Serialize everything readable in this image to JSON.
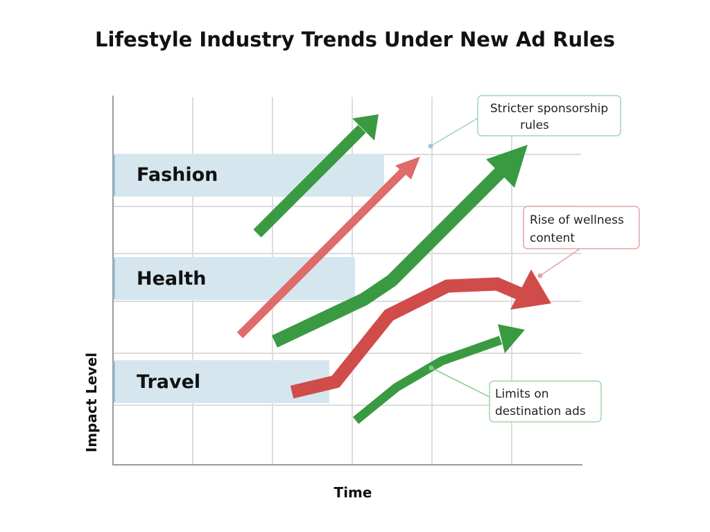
{
  "title": "Lifestyle Industry Trends Under New Ad Rules",
  "x_axis_label": "Time",
  "y_axis_label": "Impact Level",
  "categories": [
    {
      "label": "Fashion"
    },
    {
      "label": "Health"
    },
    {
      "label": "Travel"
    }
  ],
  "callouts": [
    {
      "lines": [
        "Stricter sponsorship",
        "rules"
      ]
    },
    {
      "lines": [
        "Rise of wellness",
        "content"
      ]
    },
    {
      "lines": [
        "Limits on",
        "destination ads"
      ]
    }
  ],
  "colors": {
    "green_arrow": "#3a9a41",
    "red_arrow": "#d04c4b",
    "pale_red_arrow": "#df6b6a",
    "band_fill": "#d5e6ef",
    "band_edge": "#8fb0c4",
    "grid": "#dcdcdc",
    "axis": "#9a9a9a",
    "callout_border_teal": "#9fd0c8",
    "callout_border_red": "#e3a3a3",
    "callout_border_green": "#9fd6a9"
  },
  "icons": {
    "arrow_glyph": "trend-arrow"
  }
}
